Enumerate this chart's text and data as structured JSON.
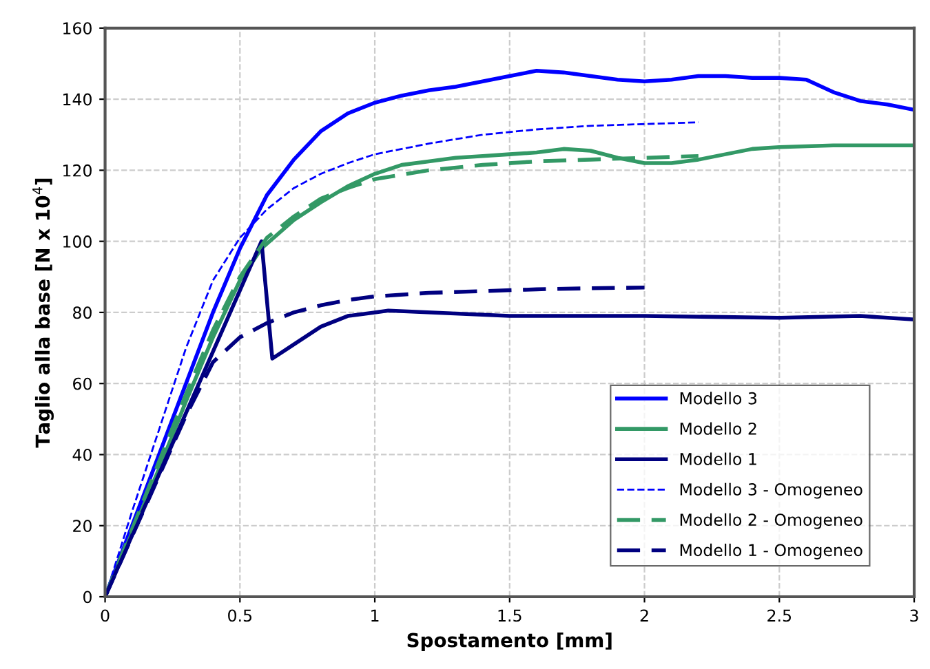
{
  "chart_data": {
    "type": "line",
    "xlabel": "Spostamento [mm]",
    "ylabel": "Taglio alla base [N x 10$^{4}$]",
    "xlim": [
      0,
      3
    ],
    "ylim": [
      0,
      160
    ],
    "xticks": [
      0,
      0.5,
      1,
      1.5,
      2,
      2.5,
      3
    ],
    "yticks": [
      0,
      20,
      40,
      60,
      80,
      100,
      120,
      140,
      160
    ],
    "grid": true,
    "legend": "bottom right",
    "marker": "none",
    "series": [
      {
        "name": "Modello 3",
        "color": "#0000ff",
        "line_style": "solid",
        "x": [
          0,
          0.1,
          0.2,
          0.3,
          0.4,
          0.5,
          0.6,
          0.7,
          0.8,
          0.9,
          1.0,
          1.1,
          1.2,
          1.3,
          1.4,
          1.5,
          1.6,
          1.7,
          1.8,
          1.9,
          2.0,
          2.1,
          2.2,
          2.3,
          2.4,
          2.5,
          2.6,
          2.7,
          2.8,
          2.9,
          3.0
        ],
        "values": [
          0,
          20,
          40,
          60,
          80,
          98,
          113,
          123,
          131,
          136,
          139,
          141,
          142.5,
          143.5,
          145,
          146.5,
          148,
          147.5,
          146.5,
          145.5,
          145,
          145.5,
          146.5,
          146.5,
          146,
          146,
          145.5,
          142,
          139.5,
          138.5,
          137
        ]
      },
      {
        "name": "Modello 2",
        "color": "#339966",
        "line_style": "solid",
        "x": [
          0,
          0.1,
          0.2,
          0.3,
          0.4,
          0.5,
          0.58,
          0.7,
          0.8,
          0.9,
          1.0,
          1.1,
          1.2,
          1.3,
          1.4,
          1.5,
          1.6,
          1.7,
          1.8,
          1.9,
          2.0,
          2.1,
          2.2,
          2.3,
          2.4,
          2.5,
          2.7,
          3.0
        ],
        "values": [
          0,
          18,
          36,
          55,
          73,
          89,
          98,
          106,
          111,
          115.5,
          119,
          121.5,
          122.5,
          123.5,
          124,
          124.5,
          125,
          126,
          125.5,
          123.5,
          122,
          122,
          123,
          124.5,
          126,
          126.5,
          127,
          127
        ]
      },
      {
        "name": "Modello 1",
        "color": "#000080",
        "line_style": "solid",
        "x": [
          0,
          0.58,
          0.62,
          0.7,
          0.8,
          0.9,
          1.0,
          1.05,
          1.5,
          2.0,
          2.5,
          2.8,
          3.0
        ],
        "values": [
          0,
          100,
          67,
          71,
          76,
          79,
          80,
          80.5,
          79,
          79,
          78.5,
          79,
          78
        ]
      },
      {
        "name": "Modello 3 - Omogeneo",
        "color": "#0000ff",
        "line_style": "dashed",
        "x": [
          0,
          0.1,
          0.2,
          0.3,
          0.4,
          0.5,
          0.6,
          0.7,
          0.8,
          0.9,
          1.0,
          1.2,
          1.4,
          1.6,
          1.8,
          2.0,
          2.2
        ],
        "values": [
          0,
          24,
          47,
          70,
          89,
          101,
          109,
          115,
          119,
          122,
          124.5,
          127.5,
          130,
          131.5,
          132.5,
          133,
          133.5
        ]
      },
      {
        "name": "Modello 2 - Omogeneo",
        "color": "#339966",
        "line_style": "dashed",
        "x": [
          0,
          0.1,
          0.2,
          0.3,
          0.4,
          0.5,
          0.6,
          0.7,
          0.8,
          0.9,
          1.0,
          1.2,
          1.4,
          1.6,
          1.8,
          2.0,
          2.2
        ],
        "values": [
          0,
          19,
          38,
          57,
          75,
          90,
          101,
          107,
          112,
          115,
          117.5,
          120,
          121.5,
          122.5,
          123,
          123.5,
          124
        ]
      },
      {
        "name": "Modello 1 - Omogeneo",
        "color": "#000080",
        "line_style": "dashed",
        "x": [
          0,
          0.1,
          0.2,
          0.3,
          0.4,
          0.5,
          0.6,
          0.7,
          0.8,
          0.9,
          1.0,
          1.2,
          1.4,
          1.6,
          1.8,
          2.0
        ],
        "values": [
          0,
          17,
          34,
          51,
          66,
          73,
          77,
          80,
          82,
          83.5,
          84.5,
          85.5,
          86,
          86.5,
          86.8,
          87
        ]
      }
    ]
  }
}
